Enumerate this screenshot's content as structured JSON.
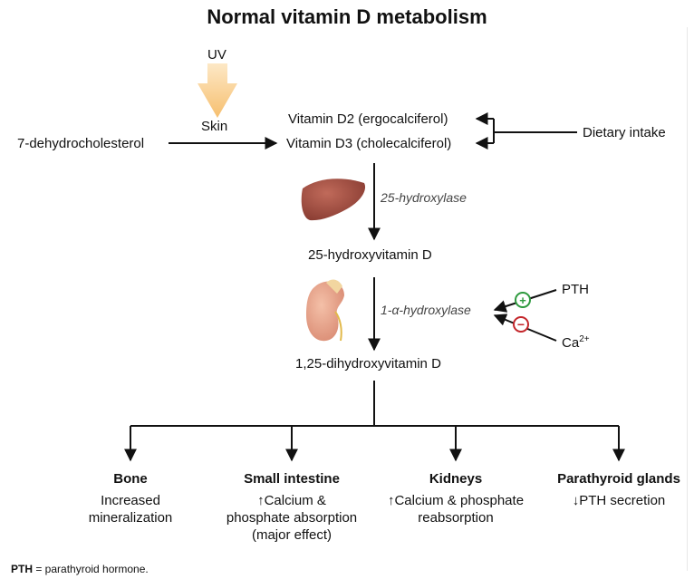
{
  "title": "Normal vitamin D metabolism",
  "sources": {
    "uv": "UV",
    "skin": "Skin",
    "precursor": "7-dehydrocholesterol",
    "dietary": "Dietary intake"
  },
  "vitamins": {
    "d2": "Vitamin D2 (ergocalciferol)",
    "d3": "Vitamin D3 (cholecalciferol)"
  },
  "enzymes": {
    "liver_enzyme": "25-hydroxylase",
    "kidney_enzyme": "1-α-hydroxylase"
  },
  "metabolites": {
    "calcidiol": "25-hydroxyvitamin D",
    "calcitriol": "1,25-dihydroxyvitamin D"
  },
  "regulators": {
    "pth": "PTH",
    "calcium_base": "Ca",
    "calcium_sup": "2+",
    "plus": "+",
    "minus": "−"
  },
  "targets": [
    {
      "name": "Bone",
      "lines": [
        "Increased",
        "mineralization"
      ]
    },
    {
      "name": "Small intestine",
      "lines": [
        "↑Calcium &",
        "phosphate absorption",
        "(major effect)"
      ]
    },
    {
      "name": "Kidneys",
      "lines": [
        "↑Calcium & phosphate",
        "reabsorption"
      ]
    },
    {
      "name": "Parathyroid glands",
      "lines": [
        "↓PTH secretion"
      ]
    }
  ],
  "footnote": {
    "abbr": "PTH",
    "text": " = parathyroid hormone."
  },
  "colors": {
    "uv_arrow": "#f6c47f",
    "liver": "#9b4a3f",
    "kidney": "#e8a08a",
    "plus": "#2e9a3e",
    "minus": "#c4262b"
  }
}
